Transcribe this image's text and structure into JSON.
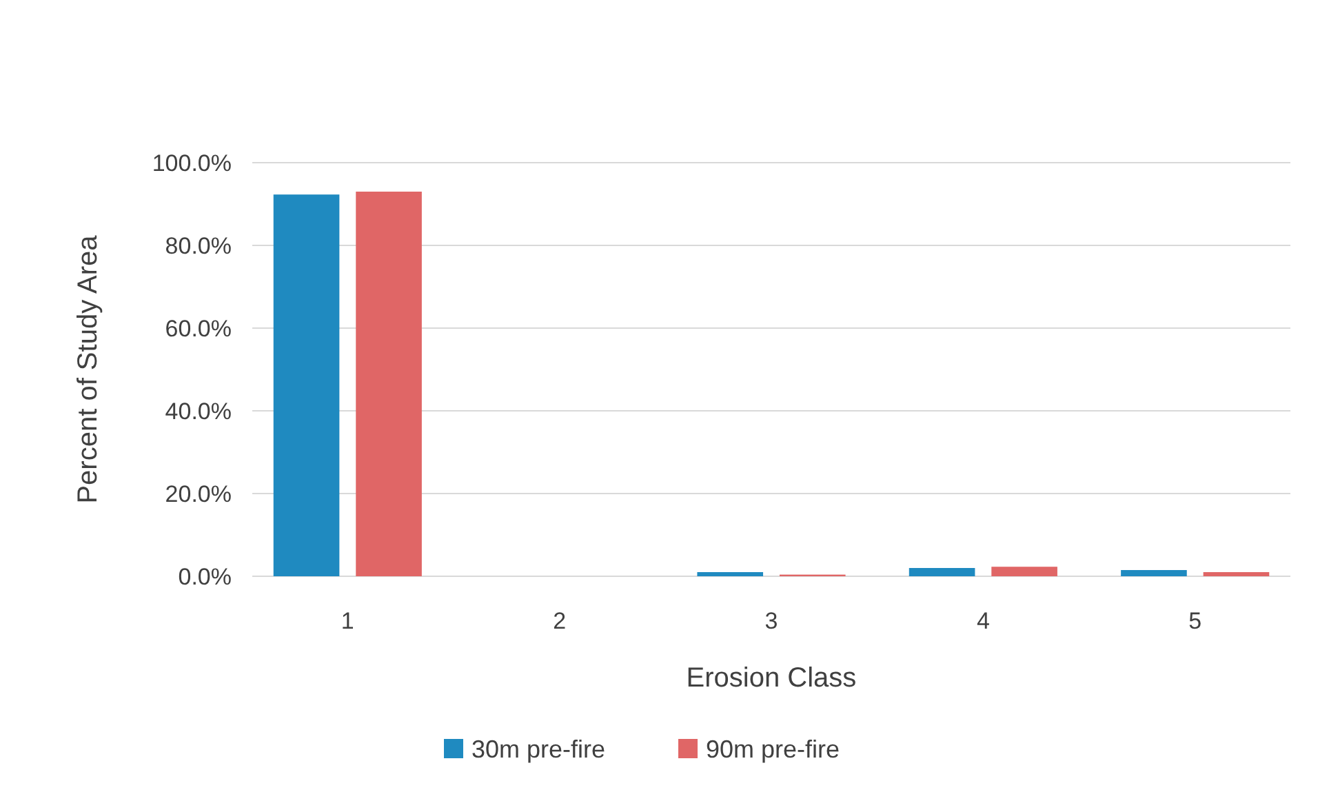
{
  "chart_data": {
    "type": "bar",
    "xlabel": "Erosion Class",
    "ylabel": "Percent of Study Area",
    "categories": [
      "1",
      "2",
      "3",
      "4",
      "5"
    ],
    "series": [
      {
        "name": "30m pre-fire",
        "color": "#1f8ac0",
        "values": [
          92.3,
          0,
          1.0,
          2.0,
          1.5
        ]
      },
      {
        "name": "90m pre-fire",
        "color": "#e06666",
        "values": [
          93.0,
          0,
          0.4,
          2.3,
          1.0
        ]
      }
    ],
    "ylim": [
      0,
      100
    ],
    "yticks": [
      {
        "value": 0,
        "label": "0.0%"
      },
      {
        "value": 20,
        "label": "20.0%"
      },
      {
        "value": 40,
        "label": "40.0%"
      },
      {
        "value": 60,
        "label": "60.0%"
      },
      {
        "value": 80,
        "label": "80.0%"
      },
      {
        "value": 100,
        "label": "100.0%"
      }
    ],
    "grid": "y",
    "legend": "bottom"
  }
}
